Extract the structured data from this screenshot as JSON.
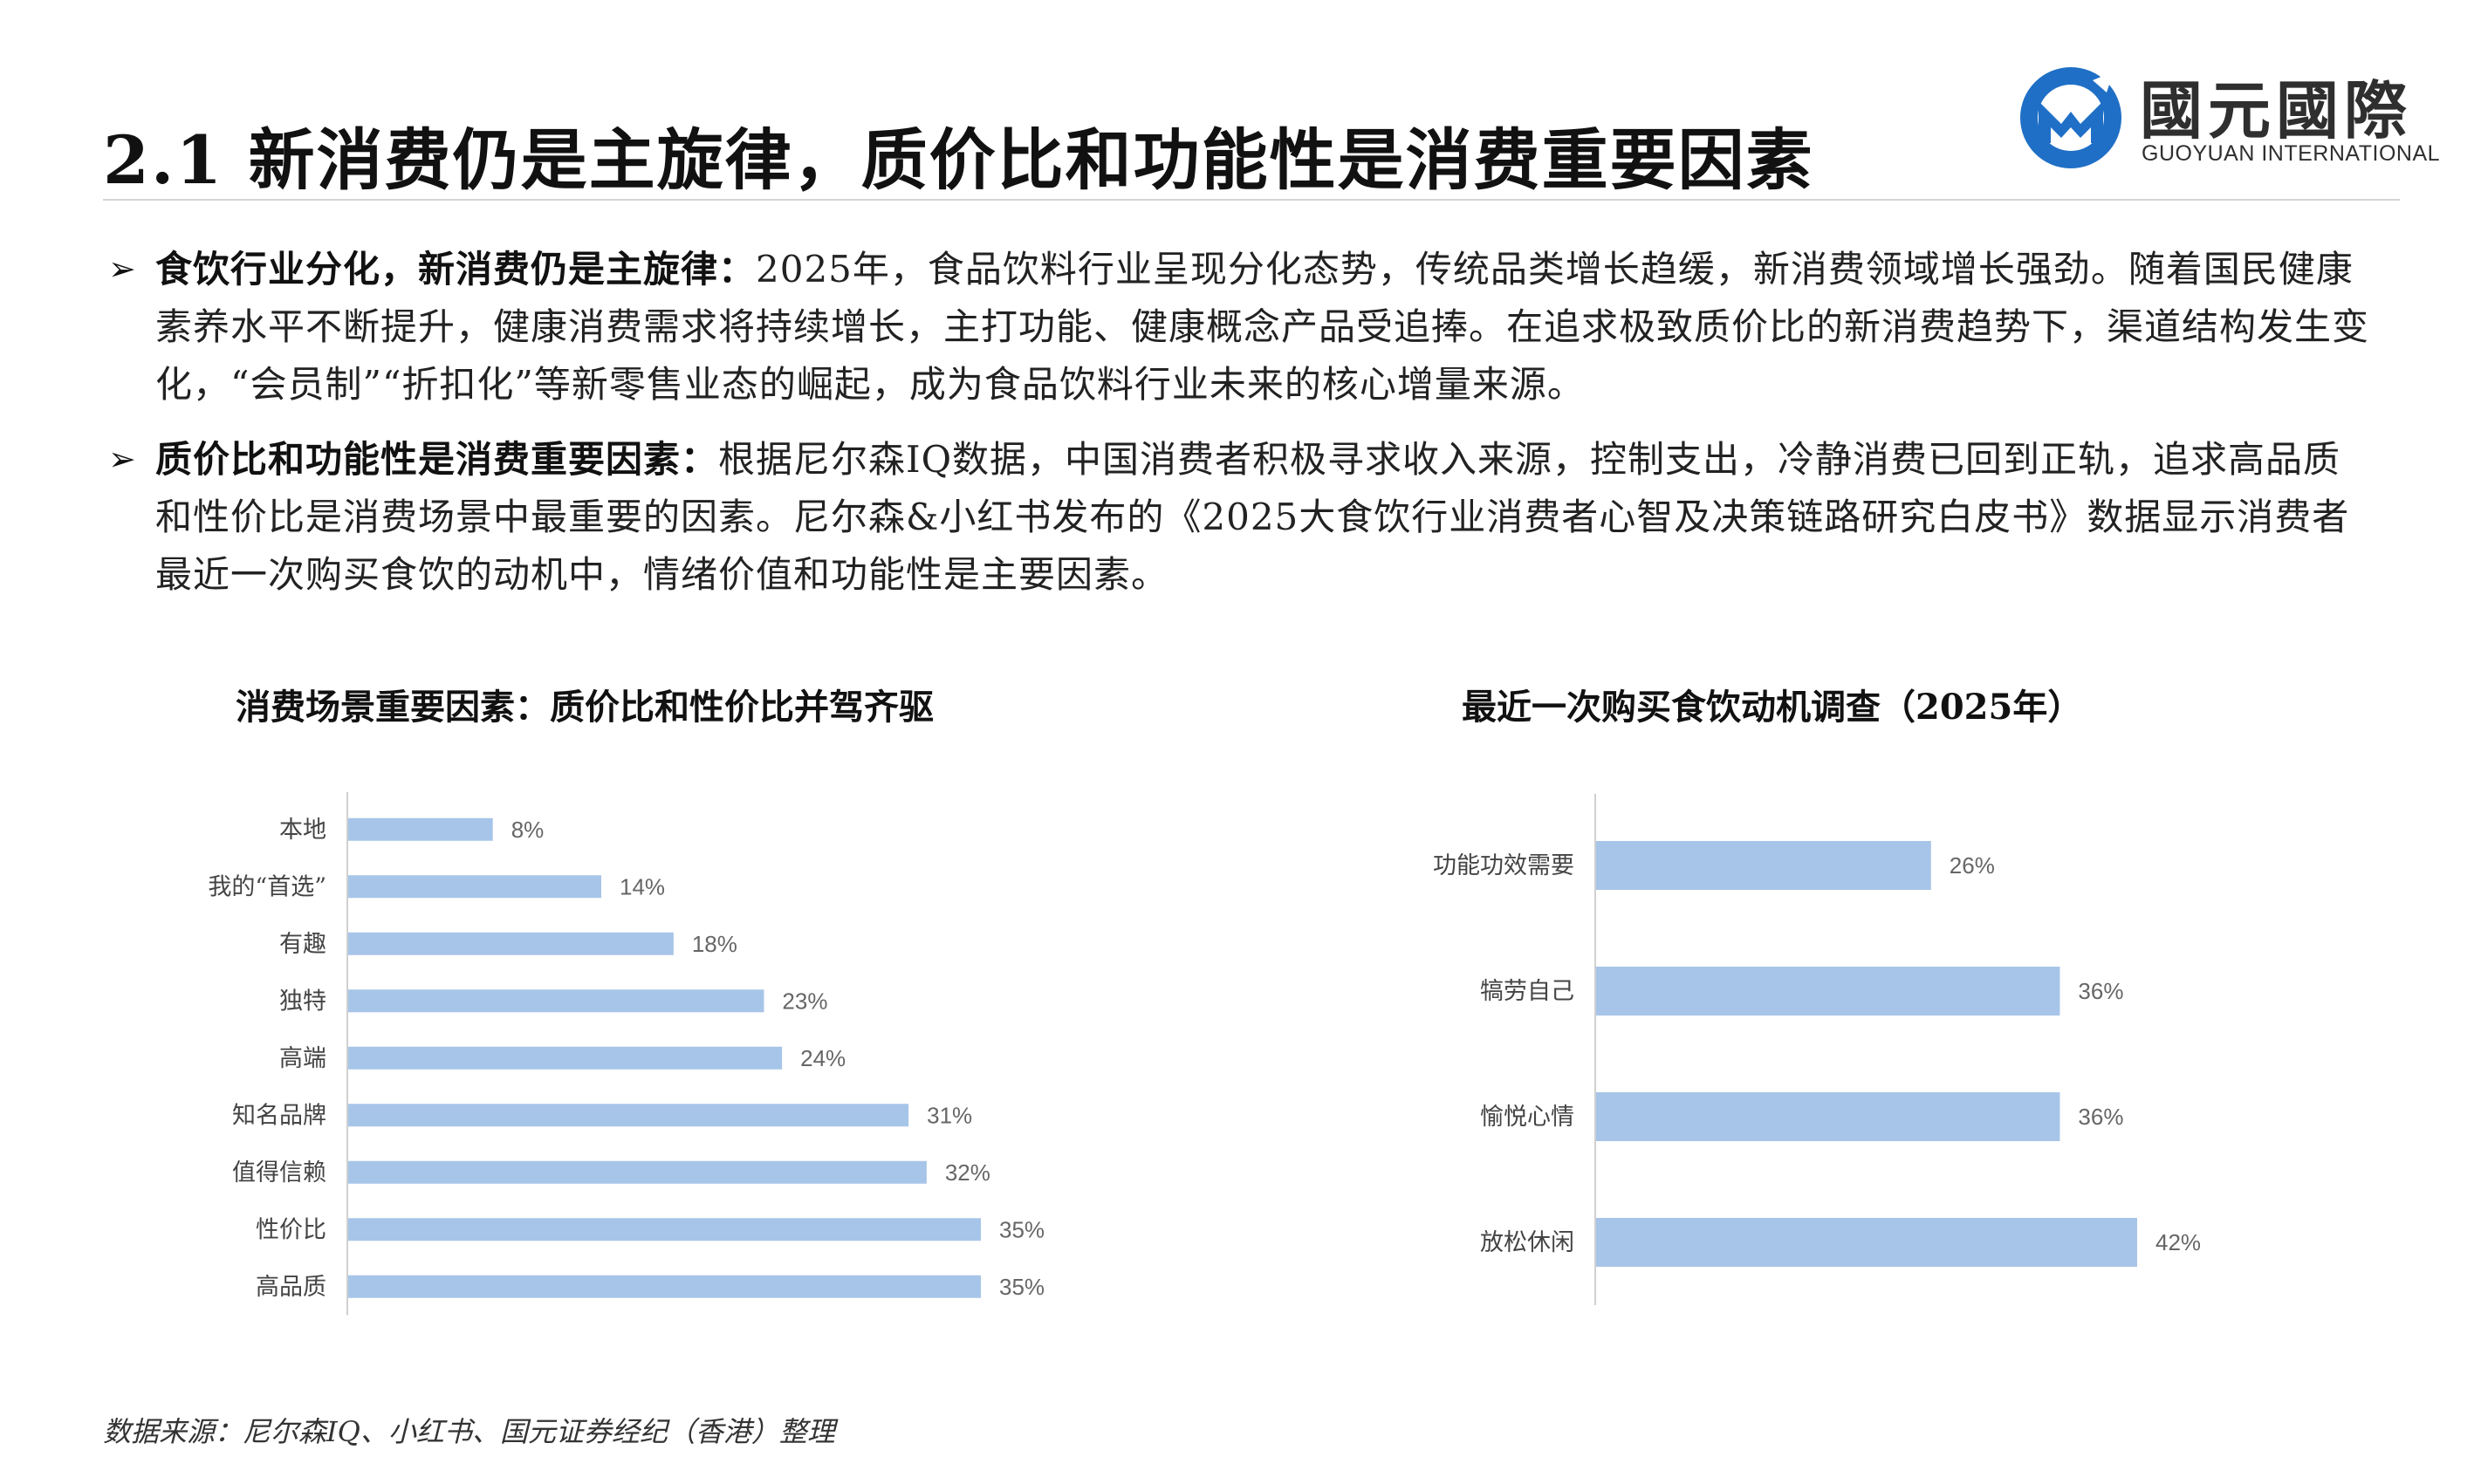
{
  "title": "2.1 新消费仍是主旋律，质价比和功能性是消费重要因素",
  "logo": {
    "name_cn": "國元國際",
    "name_en": "GUOYUAN INTERNATIONAL",
    "colors": {
      "blue": "#1f6fc6",
      "dark": "#2f2f2f"
    }
  },
  "bullets": [
    {
      "lead": "食饮行业分化，新消费仍是主旋律：",
      "text": "2025年，食品饮料行业呈现分化态势，传统品类增长趋缓，新消费领域增长强劲。随着国民健康素养水平不断提升，健康消费需求将持续增长，主打功能、健康概念产品受追捧。在追求极致质价比的新消费趋势下，渠道结构发生变化，“会员制”“折扣化”等新零售业态的崛起，成为食品饮料行业未来的核心增量来源。"
    },
    {
      "lead": "质价比和功能性是消费重要因素：",
      "text": "根据尼尔森IQ数据，中国消费者积极寻求收入来源，控制支出，冷静消费已回到正轨，追求高品质和性价比是消费场景中最重要的因素。尼尔森&小红书发布的《2025大食饮行业消费者心智及决策链路研究白皮书》数据显示消费者最近一次购买食饮的动机中，情绪价值和功能性是主要因素。"
    }
  ],
  "chart_data": [
    {
      "type": "bar",
      "orientation": "horizontal",
      "title": "消费场景重要因素：质价比和性价比并驾齐驱",
      "categories": [
        "本地",
        "我的“首选”",
        "有趣",
        "独特",
        "高端",
        "知名品牌",
        "值得信赖",
        "性价比",
        "高品质"
      ],
      "values": [
        8,
        14,
        18,
        23,
        24,
        31,
        32,
        35,
        35
      ],
      "value_labels": [
        "8%",
        "14%",
        "18%",
        "23%",
        "24%",
        "31%",
        "32%",
        "35%",
        "35%"
      ],
      "xlim": [
        0,
        35
      ],
      "grid": false,
      "legend": "none",
      "bar_color": "#a7c5e8"
    },
    {
      "type": "bar",
      "orientation": "horizontal",
      "title": "最近一次购买食饮动机调查（2025年）",
      "categories": [
        "功能功效需要",
        "犒劳自己",
        "愉悦心情",
        "放松休闲"
      ],
      "values": [
        26,
        36,
        36,
        42
      ],
      "value_labels": [
        "26%",
        "36%",
        "36%",
        "42%"
      ],
      "xlim": [
        0,
        42
      ],
      "grid": false,
      "legend": "none",
      "bar_color": "#a7c5e8"
    }
  ],
  "source": "数据来源：尼尔森IQ、小红书、国元证券经纪（香港）整理"
}
